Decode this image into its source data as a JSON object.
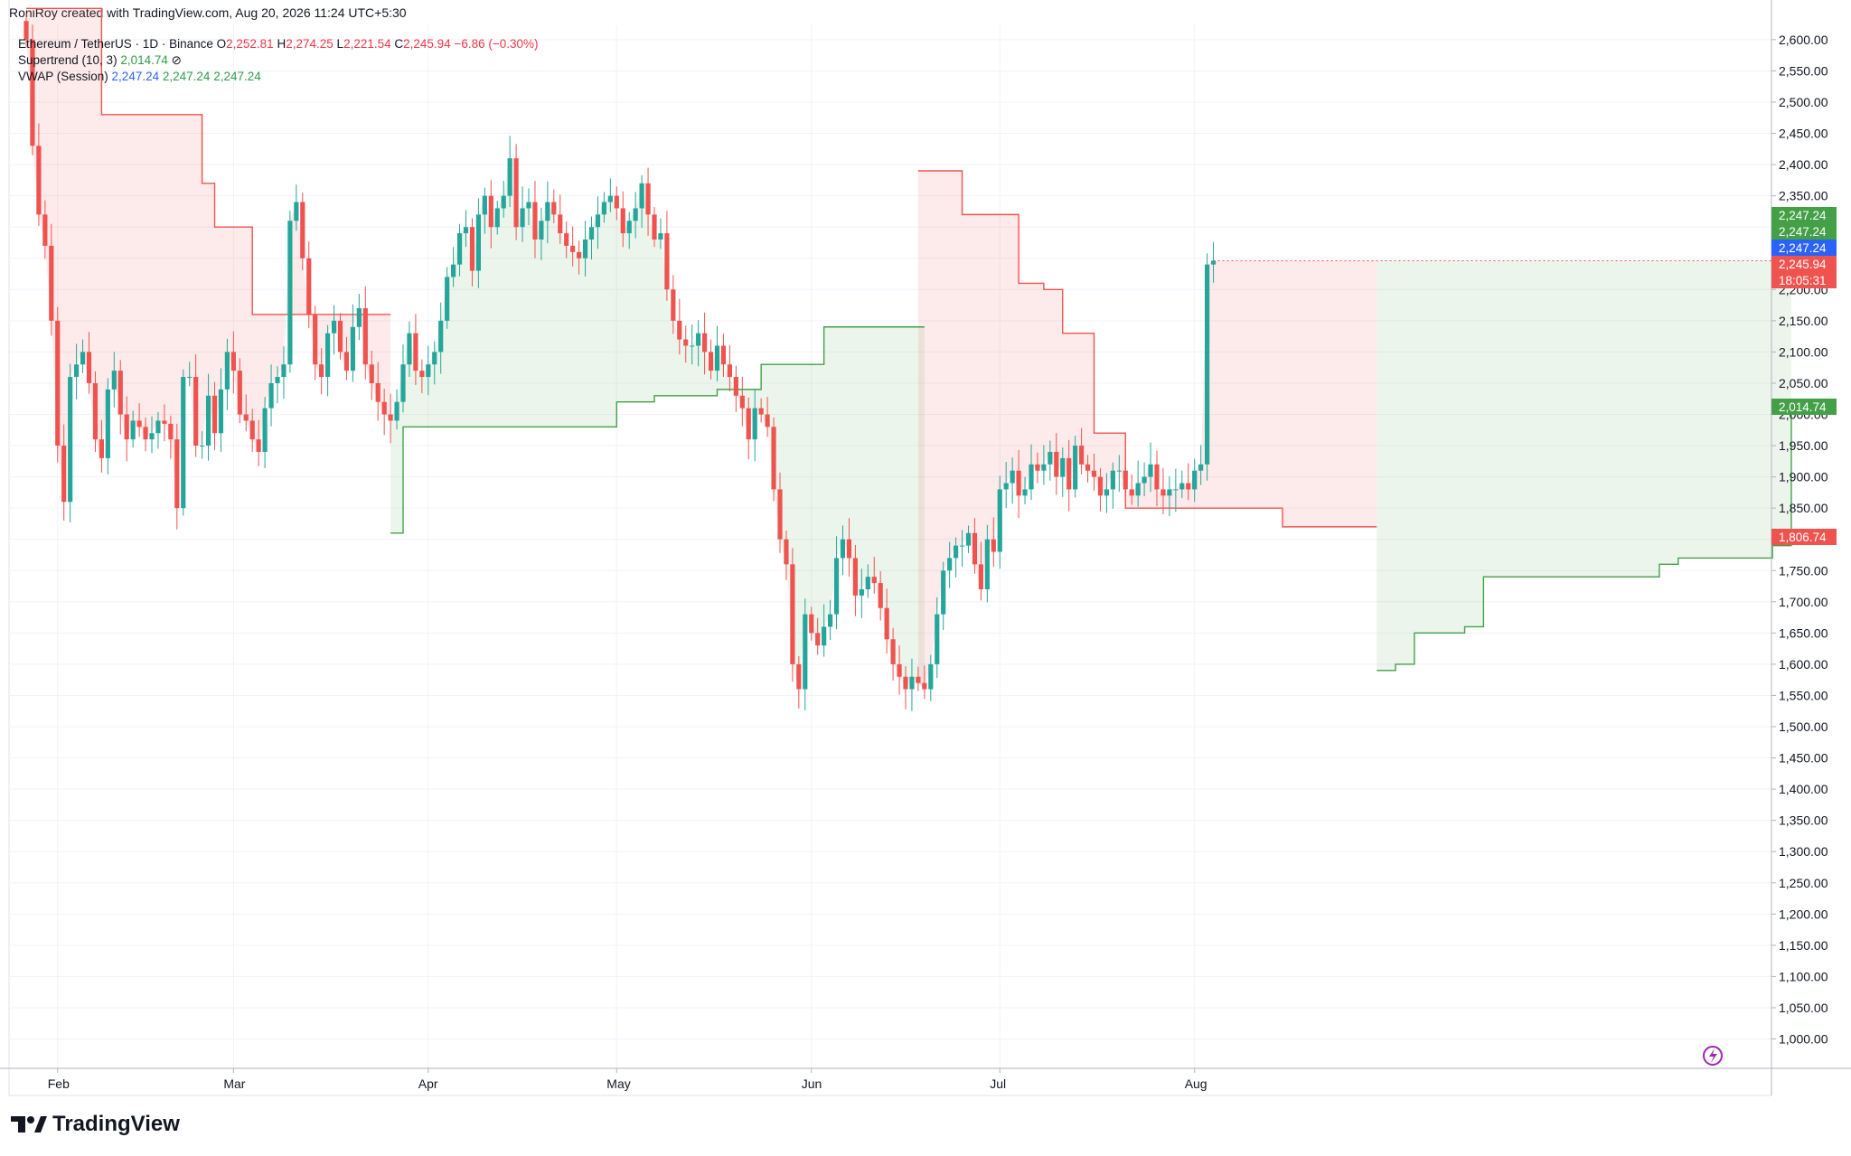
{
  "header": {
    "credit": "RoniRoy created with TradingView.com, Aug 20, 2026 11:24 UTC+5:30"
  },
  "legend": {
    "symbol": "Ethereum / TetherUS · 1D · Binance",
    "o_label": "O",
    "o": "2,252.81",
    "h_label": "H",
    "h": "2,274.25",
    "l_label": "L",
    "l": "2,221.54",
    "c_label": "C",
    "c": "2,245.94",
    "change": "−6.86 (−0.30%)",
    "supertrend_label": "Supertrend (10, 3)",
    "supertrend_value": "2,014.74",
    "vwap_label": "VWAP (Session)",
    "vwap_values": [
      "2,247.24",
      "2,247.24",
      "2,247.24"
    ]
  },
  "brand": {
    "name": "TradingView"
  },
  "colors": {
    "up": "#26a69a",
    "down": "#ef5350",
    "st_up": "#43a047",
    "st_down": "#ef5350",
    "vwap": "#2962ff"
  },
  "price_tags": [
    {
      "text": "2,247.24",
      "color": "#43a047"
    },
    {
      "text": "2,247.24",
      "color": "#43a047"
    },
    {
      "text": "2,247.24",
      "color": "#2962ff"
    },
    {
      "text": "2,245.94",
      "color": "#ef5350",
      "sub": "18:05:31"
    },
    {
      "text": "2,014.74",
      "color": "#43a047"
    },
    {
      "text": "1,806.74",
      "color": "#ef5350"
    }
  ],
  "chart_data": {
    "type": "candlestick",
    "title": "Ethereum / TetherUS · 1D · Binance",
    "y_axis": {
      "min": 950,
      "max": 2650,
      "ticks": [
        1000,
        1050,
        1100,
        1150,
        1200,
        1250,
        1300,
        1350,
        1400,
        1450,
        1500,
        1550,
        1600,
        1650,
        1700,
        1750,
        1800,
        1850,
        1900,
        1950,
        2000,
        2050,
        2100,
        2150,
        2200,
        2250,
        2300,
        2350,
        2400,
        2450,
        2500,
        2550,
        2600
      ],
      "tick_labels": [
        "1,000.00",
        "1,050.00",
        "1,100.00",
        "1,150.00",
        "1,200.00",
        "1,250.00",
        "1,300.00",
        "1,350.00",
        "1,400.00",
        "1,450.00",
        "1,500.00",
        "1,550.00",
        "1,600.00",
        "1,650.00",
        "1,700.00",
        "1,750.00",
        "1,800.00",
        "1,850.00",
        "1,900.00",
        "1,950.00",
        "2,000.00",
        "2,050.00",
        "2,100.00",
        "2,150.00",
        "2,200.00",
        "2,250.00",
        "2,300.00",
        "2,350.00",
        "2,400.00",
        "2,450.00",
        "2,500.00",
        "2,550.00",
        "2,600.00"
      ]
    },
    "x_axis": {
      "start_date": "2026-01-27",
      "months": [
        {
          "label": "Feb",
          "date": "2026-02-01"
        },
        {
          "label": "Mar",
          "date": "2026-03-01"
        },
        {
          "label": "Apr",
          "date": "2026-04-01"
        },
        {
          "label": "May",
          "date": "2026-05-01"
        },
        {
          "label": "Jun",
          "date": "2026-06-01"
        },
        {
          "label": "Jul",
          "date": "2026-07-01"
        },
        {
          "label": "Aug",
          "date": "2026-08-01"
        }
      ]
    },
    "close_series": [
      2600,
      2430,
      2320,
      2270,
      2150,
      1950,
      1860,
      2060,
      2080,
      2100,
      2050,
      1960,
      1930,
      2040,
      2070,
      2000,
      1960,
      1990,
      1980,
      1960,
      1970,
      1990,
      1985,
      1960,
      1850,
      2060,
      2060,
      1950,
      1950,
      2030,
      1970,
      2040,
      2100,
      2070,
      2000,
      1990,
      1960,
      1940,
      2010,
      2050,
      2060,
      2080,
      2310,
      2340,
      2250,
      2160,
      2080,
      2060,
      2130,
      2150,
      2100,
      2070,
      2140,
      2170,
      2080,
      2050,
      2020,
      2000,
      1990,
      2020,
      2080,
      2130,
      2070,
      2060,
      2080,
      2100,
      2150,
      2220,
      2240,
      2290,
      2300,
      2230,
      2320,
      2350,
      2300,
      2330,
      2350,
      2410,
      2300,
      2330,
      2340,
      2280,
      2310,
      2340,
      2320,
      2290,
      2270,
      2260,
      2250,
      2280,
      2300,
      2320,
      2340,
      2350,
      2330,
      2290,
      2310,
      2330,
      2370,
      2320,
      2280,
      2290,
      2200,
      2150,
      2120,
      2110,
      2110,
      2130,
      2100,
      2070,
      2110,
      2080,
      2060,
      2030,
      2010,
      1960,
      2010,
      2000,
      1980,
      1880,
      1800,
      1760,
      1600,
      1560,
      1680,
      1650,
      1630,
      1660,
      1680,
      1770,
      1800,
      1770,
      1710,
      1720,
      1740,
      1730,
      1690,
      1640,
      1600,
      1580,
      1560,
      1580,
      1570,
      1560,
      1600,
      1680,
      1750,
      1770,
      1790,
      1790,
      1810,
      1760,
      1720,
      1800,
      1780,
      1880,
      1890,
      1910,
      1870,
      1880,
      1920,
      1910,
      1920,
      1940,
      1900,
      1930,
      1880,
      1950,
      1920,
      1910,
      1900,
      1870,
      1880,
      1910,
      1910,
      1880,
      1870,
      1890,
      1900,
      1920,
      1880,
      1870,
      1880,
      1880,
      1890,
      1880,
      1910,
      1920,
      2240,
      2246
    ],
    "supertrend_down": [
      [
        0,
        2650
      ],
      [
        12,
        2480
      ],
      [
        20,
        2480
      ],
      [
        28,
        2370
      ],
      [
        30,
        2300
      ],
      [
        36,
        2160
      ],
      [
        50,
        2160
      ],
      [
        58,
        2160
      ]
    ],
    "supertrend_up": [
      [
        58,
        1810
      ],
      [
        60,
        1980
      ],
      [
        90,
        1980
      ],
      [
        94,
        2020
      ],
      [
        100,
        2030
      ],
      [
        110,
        2040
      ],
      [
        117,
        2080
      ],
      [
        121,
        2080
      ],
      [
        127,
        2140
      ],
      [
        143,
        2140
      ]
    ],
    "supertrend_down2": [
      [
        142,
        2390
      ],
      [
        149,
        2320
      ],
      [
        153,
        2320
      ],
      [
        158,
        2210
      ],
      [
        162,
        2200
      ],
      [
        165,
        2130
      ],
      [
        170,
        1970
      ],
      [
        175,
        1850
      ],
      [
        197,
        1850
      ],
      [
        200,
        1820
      ],
      [
        215,
        1820
      ]
    ],
    "supertrend_up2": [
      [
        215,
        1590
      ],
      [
        218,
        1600
      ],
      [
        221,
        1650
      ],
      [
        229,
        1660
      ],
      [
        232,
        1740
      ],
      [
        250,
        1740
      ],
      [
        260,
        1760
      ],
      [
        263,
        1770
      ],
      [
        275,
        1770
      ],
      [
        278,
        1790
      ],
      [
        281,
        2015
      ]
    ],
    "price_scale_labels": [
      "2,247.24",
      "2,247.24",
      "2,247.24",
      "2,245.94",
      "2,014.74",
      "1,806.74"
    ]
  }
}
